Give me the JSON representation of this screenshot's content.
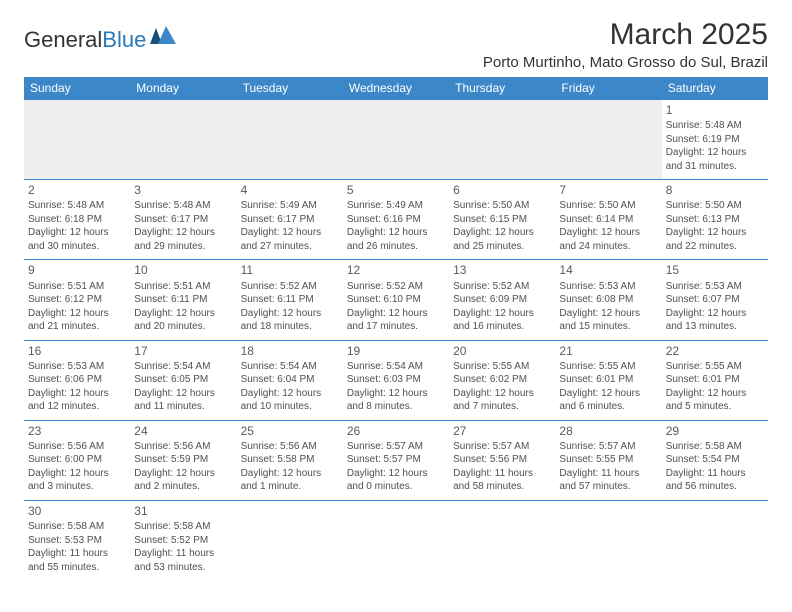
{
  "brand": {
    "general": "General",
    "blue": "Blue"
  },
  "title": "March 2025",
  "location": "Porto Murtinho, Mato Grosso do Sul, Brazil",
  "colors": {
    "header_bg": "#3b87c8",
    "header_text": "#ffffff",
    "border": "#3b87c8",
    "empty_bg": "#eeeeee",
    "page_bg": "#ffffff",
    "text": "#323232"
  },
  "dayNames": [
    "Sunday",
    "Monday",
    "Tuesday",
    "Wednesday",
    "Thursday",
    "Friday",
    "Saturday"
  ],
  "weeks": [
    [
      null,
      null,
      null,
      null,
      null,
      null,
      {
        "n": "1",
        "sr": "Sunrise: 5:48 AM",
        "ss": "Sunset: 6:19 PM",
        "d1": "Daylight: 12 hours",
        "d2": "and 31 minutes."
      }
    ],
    [
      {
        "n": "2",
        "sr": "Sunrise: 5:48 AM",
        "ss": "Sunset: 6:18 PM",
        "d1": "Daylight: 12 hours",
        "d2": "and 30 minutes."
      },
      {
        "n": "3",
        "sr": "Sunrise: 5:48 AM",
        "ss": "Sunset: 6:17 PM",
        "d1": "Daylight: 12 hours",
        "d2": "and 29 minutes."
      },
      {
        "n": "4",
        "sr": "Sunrise: 5:49 AM",
        "ss": "Sunset: 6:17 PM",
        "d1": "Daylight: 12 hours",
        "d2": "and 27 minutes."
      },
      {
        "n": "5",
        "sr": "Sunrise: 5:49 AM",
        "ss": "Sunset: 6:16 PM",
        "d1": "Daylight: 12 hours",
        "d2": "and 26 minutes."
      },
      {
        "n": "6",
        "sr": "Sunrise: 5:50 AM",
        "ss": "Sunset: 6:15 PM",
        "d1": "Daylight: 12 hours",
        "d2": "and 25 minutes."
      },
      {
        "n": "7",
        "sr": "Sunrise: 5:50 AM",
        "ss": "Sunset: 6:14 PM",
        "d1": "Daylight: 12 hours",
        "d2": "and 24 minutes."
      },
      {
        "n": "8",
        "sr": "Sunrise: 5:50 AM",
        "ss": "Sunset: 6:13 PM",
        "d1": "Daylight: 12 hours",
        "d2": "and 22 minutes."
      }
    ],
    [
      {
        "n": "9",
        "sr": "Sunrise: 5:51 AM",
        "ss": "Sunset: 6:12 PM",
        "d1": "Daylight: 12 hours",
        "d2": "and 21 minutes."
      },
      {
        "n": "10",
        "sr": "Sunrise: 5:51 AM",
        "ss": "Sunset: 6:11 PM",
        "d1": "Daylight: 12 hours",
        "d2": "and 20 minutes."
      },
      {
        "n": "11",
        "sr": "Sunrise: 5:52 AM",
        "ss": "Sunset: 6:11 PM",
        "d1": "Daylight: 12 hours",
        "d2": "and 18 minutes."
      },
      {
        "n": "12",
        "sr": "Sunrise: 5:52 AM",
        "ss": "Sunset: 6:10 PM",
        "d1": "Daylight: 12 hours",
        "d2": "and 17 minutes."
      },
      {
        "n": "13",
        "sr": "Sunrise: 5:52 AM",
        "ss": "Sunset: 6:09 PM",
        "d1": "Daylight: 12 hours",
        "d2": "and 16 minutes."
      },
      {
        "n": "14",
        "sr": "Sunrise: 5:53 AM",
        "ss": "Sunset: 6:08 PM",
        "d1": "Daylight: 12 hours",
        "d2": "and 15 minutes."
      },
      {
        "n": "15",
        "sr": "Sunrise: 5:53 AM",
        "ss": "Sunset: 6:07 PM",
        "d1": "Daylight: 12 hours",
        "d2": "and 13 minutes."
      }
    ],
    [
      {
        "n": "16",
        "sr": "Sunrise: 5:53 AM",
        "ss": "Sunset: 6:06 PM",
        "d1": "Daylight: 12 hours",
        "d2": "and 12 minutes."
      },
      {
        "n": "17",
        "sr": "Sunrise: 5:54 AM",
        "ss": "Sunset: 6:05 PM",
        "d1": "Daylight: 12 hours",
        "d2": "and 11 minutes."
      },
      {
        "n": "18",
        "sr": "Sunrise: 5:54 AM",
        "ss": "Sunset: 6:04 PM",
        "d1": "Daylight: 12 hours",
        "d2": "and 10 minutes."
      },
      {
        "n": "19",
        "sr": "Sunrise: 5:54 AM",
        "ss": "Sunset: 6:03 PM",
        "d1": "Daylight: 12 hours",
        "d2": "and 8 minutes."
      },
      {
        "n": "20",
        "sr": "Sunrise: 5:55 AM",
        "ss": "Sunset: 6:02 PM",
        "d1": "Daylight: 12 hours",
        "d2": "and 7 minutes."
      },
      {
        "n": "21",
        "sr": "Sunrise: 5:55 AM",
        "ss": "Sunset: 6:01 PM",
        "d1": "Daylight: 12 hours",
        "d2": "and 6 minutes."
      },
      {
        "n": "22",
        "sr": "Sunrise: 5:55 AM",
        "ss": "Sunset: 6:01 PM",
        "d1": "Daylight: 12 hours",
        "d2": "and 5 minutes."
      }
    ],
    [
      {
        "n": "23",
        "sr": "Sunrise: 5:56 AM",
        "ss": "Sunset: 6:00 PM",
        "d1": "Daylight: 12 hours",
        "d2": "and 3 minutes."
      },
      {
        "n": "24",
        "sr": "Sunrise: 5:56 AM",
        "ss": "Sunset: 5:59 PM",
        "d1": "Daylight: 12 hours",
        "d2": "and 2 minutes."
      },
      {
        "n": "25",
        "sr": "Sunrise: 5:56 AM",
        "ss": "Sunset: 5:58 PM",
        "d1": "Daylight: 12 hours",
        "d2": "and 1 minute."
      },
      {
        "n": "26",
        "sr": "Sunrise: 5:57 AM",
        "ss": "Sunset: 5:57 PM",
        "d1": "Daylight: 12 hours",
        "d2": "and 0 minutes."
      },
      {
        "n": "27",
        "sr": "Sunrise: 5:57 AM",
        "ss": "Sunset: 5:56 PM",
        "d1": "Daylight: 11 hours",
        "d2": "and 58 minutes."
      },
      {
        "n": "28",
        "sr": "Sunrise: 5:57 AM",
        "ss": "Sunset: 5:55 PM",
        "d1": "Daylight: 11 hours",
        "d2": "and 57 minutes."
      },
      {
        "n": "29",
        "sr": "Sunrise: 5:58 AM",
        "ss": "Sunset: 5:54 PM",
        "d1": "Daylight: 11 hours",
        "d2": "and 56 minutes."
      }
    ],
    [
      {
        "n": "30",
        "sr": "Sunrise: 5:58 AM",
        "ss": "Sunset: 5:53 PM",
        "d1": "Daylight: 11 hours",
        "d2": "and 55 minutes."
      },
      {
        "n": "31",
        "sr": "Sunrise: 5:58 AM",
        "ss": "Sunset: 5:52 PM",
        "d1": "Daylight: 11 hours",
        "d2": "and 53 minutes."
      },
      null,
      null,
      null,
      null,
      null
    ]
  ]
}
